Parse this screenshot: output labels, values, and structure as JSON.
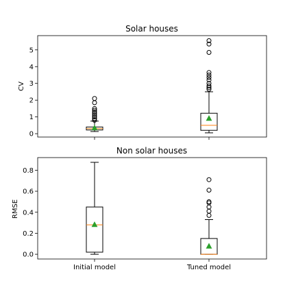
{
  "chart_data": [
    {
      "type": "box",
      "title": "Solar houses",
      "ylabel": "CV",
      "xlabel": "",
      "ylim": [
        -0.2,
        5.85
      ],
      "yticks": [
        0,
        1,
        2,
        3,
        4,
        5
      ],
      "categories": [
        "Initial model",
        "Tuned model"
      ],
      "show_xtick_labels": false,
      "boxes": [
        {
          "whisker_low": 0.13,
          "q1": 0.22,
          "median": 0.3,
          "q3": 0.4,
          "whisker_high": 0.75,
          "mean": 0.33,
          "outliers": [
            0.8,
            0.9,
            1.0,
            1.1,
            1.2,
            1.3,
            1.4,
            1.5,
            1.85,
            2.1
          ]
        },
        {
          "whisker_low": 0.05,
          "q1": 0.2,
          "median": 0.5,
          "q3": 1.22,
          "whisker_high": 2.5,
          "mean": 0.9,
          "outliers": [
            2.65,
            2.75,
            2.85,
            3.0,
            3.2,
            3.35,
            3.5,
            3.65,
            4.85,
            5.35,
            5.55
          ]
        }
      ]
    },
    {
      "type": "box",
      "title": "Non solar houses",
      "ylabel": "RMSE",
      "xlabel": "",
      "ylim": [
        -0.045,
        0.92
      ],
      "yticks": [
        0.0,
        0.2,
        0.4,
        0.6,
        0.8
      ],
      "categories": [
        "Initial model",
        "Tuned model"
      ],
      "show_xtick_labels": true,
      "boxes": [
        {
          "whisker_low": 0.0,
          "q1": 0.02,
          "median": 0.28,
          "q3": 0.45,
          "whisker_high": 0.875,
          "mean": 0.28,
          "outliers": []
        },
        {
          "whisker_low": 0.0,
          "q1": 0.0,
          "median": 0.0,
          "q3": 0.15,
          "whisker_high": 0.33,
          "mean": 0.075,
          "outliers": [
            0.37,
            0.41,
            0.45,
            0.49,
            0.5,
            0.61,
            0.71
          ]
        }
      ]
    }
  ],
  "colors": {
    "median": "#ff7f0e",
    "mean": "#2ca02c",
    "frame": "#000000"
  }
}
